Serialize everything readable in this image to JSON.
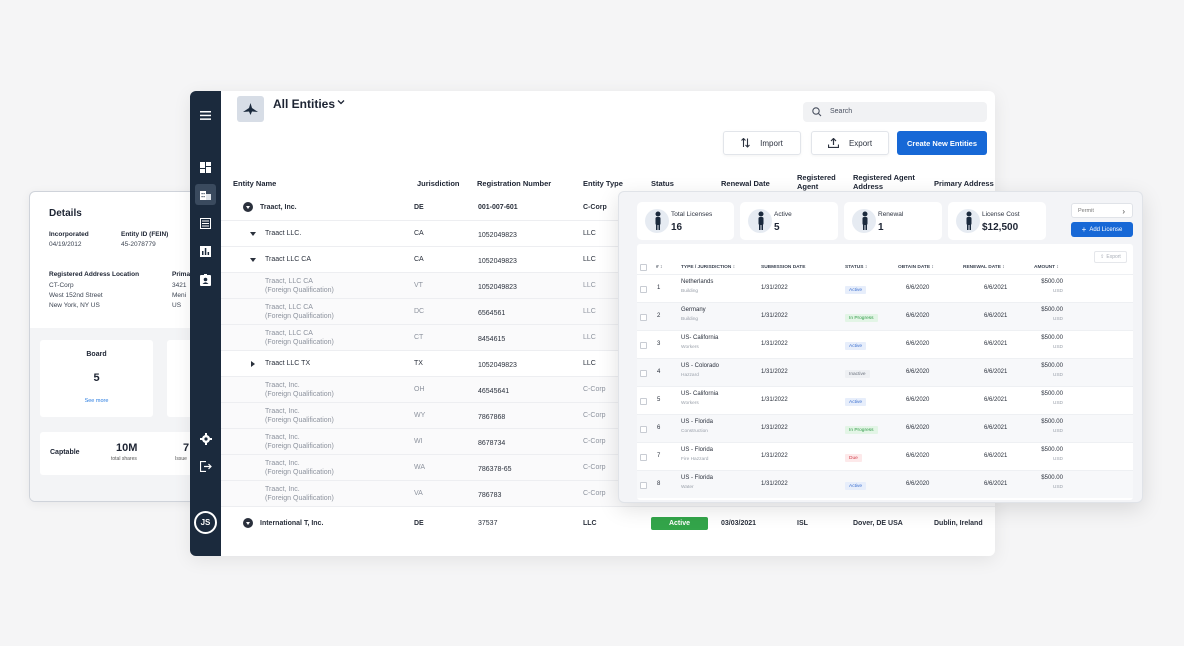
{
  "details": {
    "title": "Details",
    "incorporated_label": "Incorporated",
    "incorporated_value": "04/19/2012",
    "entity_id_label": "Entity ID (FEIN)",
    "entity_id_value": "45-2078779",
    "reg_address_label": "Registered Address Location",
    "reg_address_lines": [
      "CT-Corp",
      "West 152nd Street",
      "New York, NY US"
    ],
    "primary_label": "Prima",
    "primary_lines": [
      "3421",
      "Meni",
      "US"
    ],
    "board_label": "Board",
    "board_value": "5",
    "see_more": "See more",
    "captable_label": "Captable",
    "shares_value": "10M",
    "shares_label": "total shares",
    "issued_value": "7",
    "issued_label": "Issue"
  },
  "main": {
    "title": "All Entities",
    "search_placeholder": "Search",
    "import_label": "Import",
    "export_label": "Export",
    "create_label": "Create New Entities",
    "user_initials": "JS",
    "columns": {
      "entity_name": "Entity Name",
      "jurisdiction": "Jurisdiction",
      "registration_number": "Registration Number",
      "entity_type": "Entity Type",
      "status": "Status",
      "renewal_date": "Renewal Date",
      "registered_agent": [
        "Registered",
        "Agent"
      ],
      "registered_agent_address": [
        "Registered Agent",
        "Address"
      ],
      "primary_address": "Primary Address"
    },
    "rows": [
      {
        "name": "Traact, Inc.",
        "jurisdiction": "DE",
        "reg": "001-007-601",
        "type": "C-Corp"
      },
      {
        "name": "Traact LLC.",
        "jurisdiction": "CA",
        "reg": "1052049823",
        "type": "LLC"
      },
      {
        "name": "Traact LLC CA",
        "jurisdiction": "CA",
        "reg": "1052049823",
        "type": "LLC"
      },
      {
        "name": "Traact, LLC CA",
        "qual": "(Foreign Qualification)",
        "jurisdiction": "VT",
        "reg": "1052049823",
        "type": "LLC"
      },
      {
        "name": "Traact, LLC CA",
        "qual": "(Foreign Qualification)",
        "jurisdiction": "DC",
        "reg": "6564561",
        "type": "LLC"
      },
      {
        "name": "Traact, LLC CA",
        "qual": "(Foreign Qualification)",
        "jurisdiction": "CT",
        "reg": "8454615",
        "type": "LLC"
      },
      {
        "name": "Traact LLC TX",
        "jurisdiction": "TX",
        "reg": "1052049823",
        "type": "LLC"
      },
      {
        "name": "Traact, Inc.",
        "qual": "(Foreign Qualification)",
        "jurisdiction": "OH",
        "reg": "46545641",
        "type": "C-Corp"
      },
      {
        "name": "Traact, Inc.",
        "qual": "(Foreign Qualification)",
        "jurisdiction": "WY",
        "reg": "7867868",
        "type": "C-Corp"
      },
      {
        "name": "Traact, Inc.",
        "qual": "(Foreign Qualification)",
        "jurisdiction": "WI",
        "reg": "8678734",
        "type": "C-Corp"
      },
      {
        "name": "Traact, Inc.",
        "qual": "(Foreign Qualification)",
        "jurisdiction": "WA",
        "reg": "786378-65",
        "type": "C-Corp"
      },
      {
        "name": "Traact, Inc.",
        "qual": "(Foreign Qualification)",
        "jurisdiction": "VA",
        "reg": "786783",
        "type": "C-Corp"
      },
      {
        "name": "International T, Inc.",
        "jurisdiction": "DE",
        "reg": "37537",
        "type": "LLC",
        "status": "Active",
        "renewal": "03/03/2021",
        "agent": "ISL",
        "agent_address": "Dover, DE USA",
        "primary": "Dublin, Ireland"
      }
    ]
  },
  "licenses": {
    "stats": [
      {
        "label": "Total Licenses",
        "value": "16"
      },
      {
        "label": "Active",
        "value": "5"
      },
      {
        "label": "Renewal",
        "value": "1"
      },
      {
        "label": "License Cost",
        "value": "$12,500"
      }
    ],
    "permit_label": "Permit",
    "add_label": "Add License",
    "export_label": "Export",
    "columns": {
      "num": "#",
      "type": "TYPE / JURISDICTION",
      "submission": "SUBMISSION DATE",
      "status": "STATUS",
      "obtain": "OBTAIN DATE",
      "renewal": "RENEWAL DATE",
      "amount": "AMOUNT"
    },
    "rows": [
      {
        "num": "1",
        "jurisdiction": "Netherlands",
        "type": "Building",
        "submission": "1/31/2022",
        "status": "Active",
        "obtain": "6/6/2020",
        "renewal": "6/6/2021",
        "amount": "$500.00",
        "currency": "USD"
      },
      {
        "num": "2",
        "jurisdiction": "Germany",
        "type": "Building",
        "submission": "1/31/2022",
        "status": "In Progress",
        "obtain": "6/6/2020",
        "renewal": "6/6/2021",
        "amount": "$500.00",
        "currency": "USD"
      },
      {
        "num": "3",
        "jurisdiction": "US- California",
        "type": "Workers",
        "submission": "1/31/2022",
        "status": "Active",
        "obtain": "6/6/2020",
        "renewal": "6/6/2021",
        "amount": "$500.00",
        "currency": "USD"
      },
      {
        "num": "4",
        "jurisdiction": "US - Colorado",
        "type": "Hazzard",
        "submission": "1/31/2022",
        "status": "Inactive",
        "obtain": "6/6/2020",
        "renewal": "6/6/2021",
        "amount": "$500.00",
        "currency": "USD"
      },
      {
        "num": "5",
        "jurisdiction": "US- California",
        "type": "Workers",
        "submission": "1/31/2022",
        "status": "Active",
        "obtain": "6/6/2020",
        "renewal": "6/6/2021",
        "amount": "$500.00",
        "currency": "USD"
      },
      {
        "num": "6",
        "jurisdiction": "US - Florida",
        "type": "Construction",
        "submission": "1/31/2022",
        "status": "In Progress",
        "obtain": "6/6/2020",
        "renewal": "6/6/2021",
        "amount": "$500.00",
        "currency": "USD"
      },
      {
        "num": "7",
        "jurisdiction": "US - Florida",
        "type": "Fire Hazzard",
        "submission": "1/31/2022",
        "status": "Due",
        "obtain": "6/6/2020",
        "renewal": "6/6/2021",
        "amount": "$500.00",
        "currency": "USD"
      },
      {
        "num": "8",
        "jurisdiction": "US - Florida",
        "type": "Water",
        "submission": "1/31/2022",
        "status": "Active",
        "obtain": "6/6/2020",
        "renewal": "6/6/2021",
        "amount": "$500.00",
        "currency": "USD"
      }
    ]
  },
  "colors": {
    "sidebar": "#1b2a3d",
    "primary": "#1768d6",
    "success": "#33a54a"
  },
  "icons": [
    "menu-icon",
    "dashboard-icon",
    "building-icon",
    "list-icon",
    "chart-icon",
    "id-badge-icon",
    "gear-icon",
    "logout-icon",
    "search-icon",
    "import-icon",
    "export-icon",
    "chevron-down-icon",
    "chevron-right-icon",
    "plus-icon",
    "upload-icon",
    "sort-icon"
  ]
}
